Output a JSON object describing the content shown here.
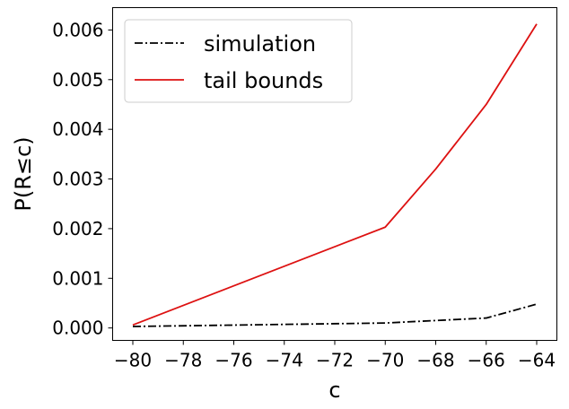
{
  "chart_data": {
    "type": "line",
    "title": "",
    "xlabel": "c",
    "ylabel": "P(R≤c)",
    "xlim": [
      -80.8,
      -63.2
    ],
    "ylim": [
      -0.00025,
      0.00645
    ],
    "xticks": [
      -80,
      -78,
      -76,
      -74,
      -72,
      -70,
      -68,
      -66,
      -64
    ],
    "xtick_labels": [
      "−80",
      "−78",
      "−76",
      "−74",
      "−72",
      "−70",
      "−68",
      "−66",
      "−64"
    ],
    "yticks": [
      0.0,
      0.001,
      0.002,
      0.003,
      0.004,
      0.005,
      0.006
    ],
    "ytick_labels": [
      "0.000",
      "0.001",
      "0.002",
      "0.003",
      "0.004",
      "0.005",
      "0.006"
    ],
    "grid": false,
    "legend_position": "top-left",
    "series": [
      {
        "name": "simulation",
        "color": "#000000",
        "style": "dashdot",
        "x": [
          -80,
          -70,
          -68,
          -66,
          -64
        ],
        "y": [
          3e-05,
          0.0001,
          0.00015,
          0.0002,
          0.00048
        ]
      },
      {
        "name": "tail bounds",
        "color": "#dd1111",
        "style": "solid",
        "x": [
          -80,
          -70,
          -68,
          -66,
          -64
        ],
        "y": [
          6e-05,
          0.00203,
          0.0032,
          0.0045,
          0.00612
        ]
      }
    ]
  }
}
